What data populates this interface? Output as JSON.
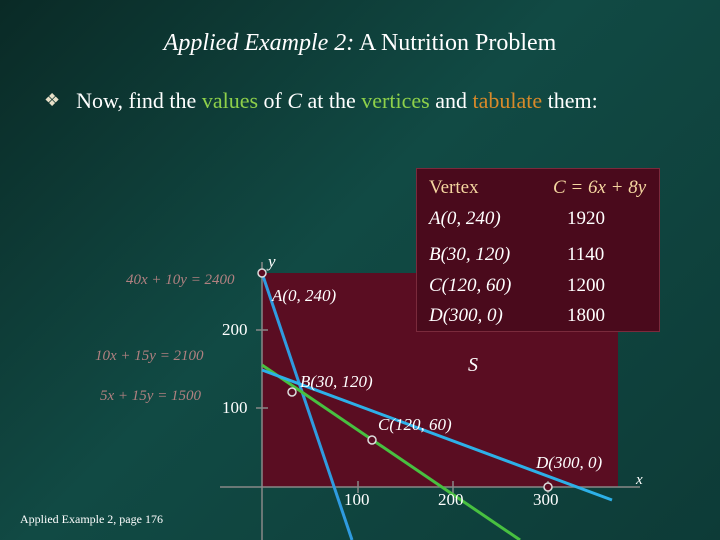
{
  "title": {
    "italic_part": "Applied Example 2:",
    "rest": "A Nutrition Problem"
  },
  "bullet": {
    "parts": [
      "Now, find the ",
      "values",
      " of ",
      "C",
      " at the ",
      "vertices",
      " and ",
      "tabulate",
      " them:"
    ]
  },
  "table": {
    "headers": [
      "Vertex",
      "C = 6x + 8y"
    ],
    "rows": [
      [
        "A(0, 240)",
        "1920"
      ],
      [
        "B(30, 120)",
        "1140"
      ],
      [
        "C(120, 60)",
        "1200"
      ],
      [
        "D(300, 0)",
        "1800"
      ]
    ]
  },
  "graph": {
    "y_axis_label": "y",
    "x_axis_label": "x",
    "region_label": "S",
    "y_ticks": [
      "200",
      "100"
    ],
    "x_ticks": [
      "100",
      "200",
      "300"
    ],
    "vertex_labels": [
      "A(0, 240)",
      "B(30, 120)",
      "C(120, 60)",
      "D(300, 0)"
    ],
    "equations": [
      "40x + 10y = 2400",
      "10x + 15y = 2100",
      "5x + 15y = 1500"
    ]
  },
  "colors": {
    "line1": "#2f9be0",
    "line2": "#48c040",
    "line3": "#2db0e8",
    "region": "#5a0d22"
  },
  "footer": "Applied Example 2, page 176"
}
